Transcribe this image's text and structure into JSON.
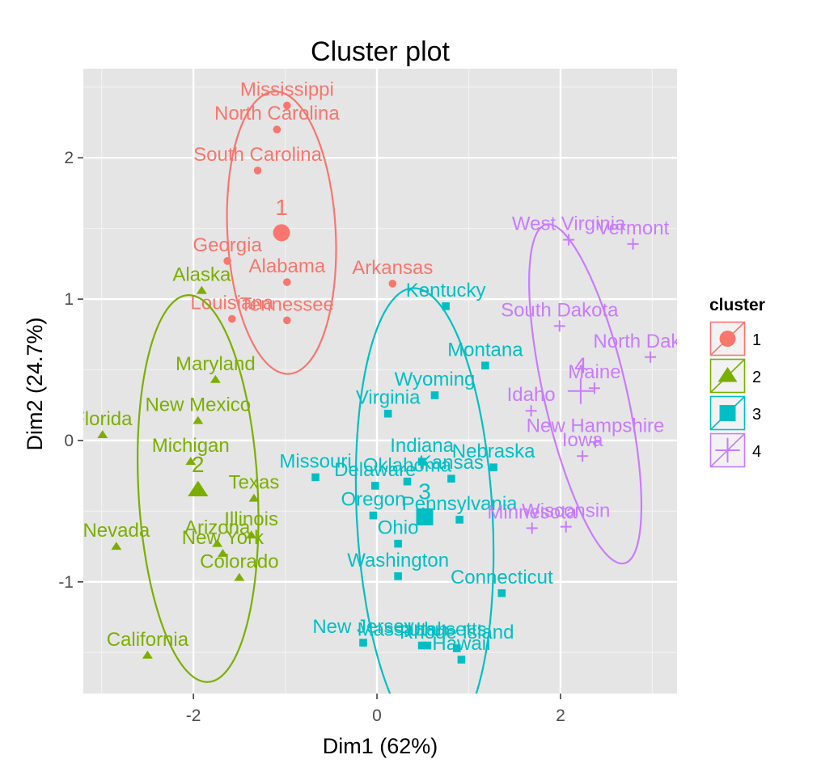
{
  "chart_data": {
    "type": "scatter",
    "title": "Cluster plot",
    "xlabel": "Dim1 (62%)",
    "ylabel": "Dim2 (24.7%)",
    "xlim": [
      -3.2,
      3.27
    ],
    "ylim": [
      -1.79,
      2.63
    ],
    "xticks": [
      -2,
      0,
      2
    ],
    "yticks": [
      -1,
      0,
      1,
      2
    ],
    "xtick_labels": [
      "-2",
      "0",
      "2"
    ],
    "ytick_labels": [
      "-1",
      "0",
      "1",
      "2"
    ],
    "grid": true,
    "legend": {
      "title": "cluster",
      "position": "right"
    },
    "clusters": [
      {
        "name": "1",
        "color": "#F8766D",
        "marker": "circle",
        "center": [
          -1.04,
          1.47
        ],
        "ellipse": {
          "cx": -1.04,
          "cy": 1.47,
          "rx": 0.59,
          "ry": 1.0,
          "angle_deg": 3
        },
        "points": [
          {
            "label": "Mississippi",
            "x": -0.98,
            "y": 2.37
          },
          {
            "label": "North Carolina",
            "x": -1.09,
            "y": 2.2
          },
          {
            "label": "South Carolina",
            "x": -1.3,
            "y": 1.91
          },
          {
            "label": "Georgia",
            "x": -1.63,
            "y": 1.27
          },
          {
            "label": "Alabama",
            "x": -0.98,
            "y": 1.12
          },
          {
            "label": "Arkansas",
            "x": 0.17,
            "y": 1.11
          },
          {
            "label": "Louisiana",
            "x": -1.58,
            "y": 0.86
          },
          {
            "label": "Tennessee",
            "x": -0.98,
            "y": 0.85
          }
        ]
      },
      {
        "name": "2",
        "color": "#7CAE00",
        "marker": "triangle",
        "center": [
          -1.95,
          -0.35
        ],
        "ellipse": {
          "cx": -1.95,
          "cy": -0.34,
          "rx": 0.65,
          "ry": 1.37,
          "angle_deg": 3
        },
        "points": [
          {
            "label": "Alaska",
            "x": -1.91,
            "y": 1.06
          },
          {
            "label": "Maryland",
            "x": -1.76,
            "y": 0.43
          },
          {
            "label": "New Mexico",
            "x": -1.95,
            "y": 0.14
          },
          {
            "label": "Florida",
            "x": -2.99,
            "y": 0.04
          },
          {
            "label": "Michigan",
            "x": -2.03,
            "y": -0.15
          },
          {
            "label": "Texas",
            "x": -1.34,
            "y": -0.41
          },
          {
            "label": "Illinois",
            "x": -1.37,
            "y": -0.67
          },
          {
            "label": "Arizona",
            "x": -1.74,
            "y": -0.73
          },
          {
            "label": "New York",
            "x": -1.68,
            "y": -0.8
          },
          {
            "label": "Nevada",
            "x": -2.84,
            "y": -0.75
          },
          {
            "label": "Colorado",
            "x": -1.5,
            "y": -0.97
          },
          {
            "label": "California",
            "x": -2.5,
            "y": -1.52
          }
        ]
      },
      {
        "name": "3",
        "color": "#00BFC4",
        "marker": "square",
        "center": [
          0.52,
          -0.54
        ],
        "ellipse": {
          "cx": 0.52,
          "cy": -0.54,
          "rx": 0.74,
          "ry": 1.62,
          "angle_deg": 3
        },
        "points": [
          {
            "label": "Kentucky",
            "x": 0.75,
            "y": 0.95
          },
          {
            "label": "Montana",
            "x": 1.18,
            "y": 0.53
          },
          {
            "label": "Wyoming",
            "x": 0.63,
            "y": 0.32
          },
          {
            "label": "Virginia",
            "x": 0.12,
            "y": 0.19
          },
          {
            "label": "Indiana",
            "x": 0.49,
            "y": -0.15
          },
          {
            "label": "Nebraska",
            "x": 1.27,
            "y": -0.19
          },
          {
            "label": "Missouri",
            "x": -0.67,
            "y": -0.26
          },
          {
            "label": "Kansas",
            "x": 0.81,
            "y": -0.27
          },
          {
            "label": "Oklahoma",
            "x": 0.33,
            "y": -0.29
          },
          {
            "label": "Delaware",
            "x": -0.02,
            "y": -0.32
          },
          {
            "label": "Oregon",
            "x": -0.04,
            "y": -0.53
          },
          {
            "label": "Pennsylvania",
            "x": 0.9,
            "y": -0.56
          },
          {
            "label": "Ohio",
            "x": 0.23,
            "y": -0.73
          },
          {
            "label": "Washington",
            "x": 0.23,
            "y": -0.96
          },
          {
            "label": "Connecticut",
            "x": 1.36,
            "y": -1.08
          },
          {
            "label": "New Jersey",
            "x": -0.15,
            "y": -1.43
          },
          {
            "label": "Massachusetts",
            "x": 0.49,
            "y": -1.45
          },
          {
            "label": "Utah",
            "x": 0.55,
            "y": -1.45
          },
          {
            "label": "Rhode Island",
            "x": 0.87,
            "y": -1.47
          },
          {
            "label": "Hawaii",
            "x": 0.92,
            "y": -1.55
          }
        ]
      },
      {
        "name": "4",
        "color": "#C77CFF",
        "marker": "plus",
        "center": [
          2.22,
          0.35
        ],
        "ellipse": {
          "cx": 2.27,
          "cy": 0.33,
          "rx": 0.45,
          "ry": 1.23,
          "angle_deg": 13
        },
        "points": [
          {
            "label": "West Virginia",
            "x": 2.09,
            "y": 1.42
          },
          {
            "label": "Vermont",
            "x": 2.79,
            "y": 1.39
          },
          {
            "label": "South Dakota",
            "x": 1.99,
            "y": 0.81
          },
          {
            "label": "North Dakota",
            "x": 2.98,
            "y": 0.59
          },
          {
            "label": "Maine",
            "x": 2.37,
            "y": 0.37
          },
          {
            "label": "Idaho",
            "x": 1.68,
            "y": 0.21
          },
          {
            "label": "New Hampshire",
            "x": 2.38,
            "y": -0.01
          },
          {
            "label": "Iowa",
            "x": 2.24,
            "y": -0.11
          },
          {
            "label": "Minnesota",
            "x": 1.69,
            "y": -0.62
          },
          {
            "label": "Wisconsin",
            "x": 2.06,
            "y": -0.61
          }
        ]
      }
    ]
  }
}
